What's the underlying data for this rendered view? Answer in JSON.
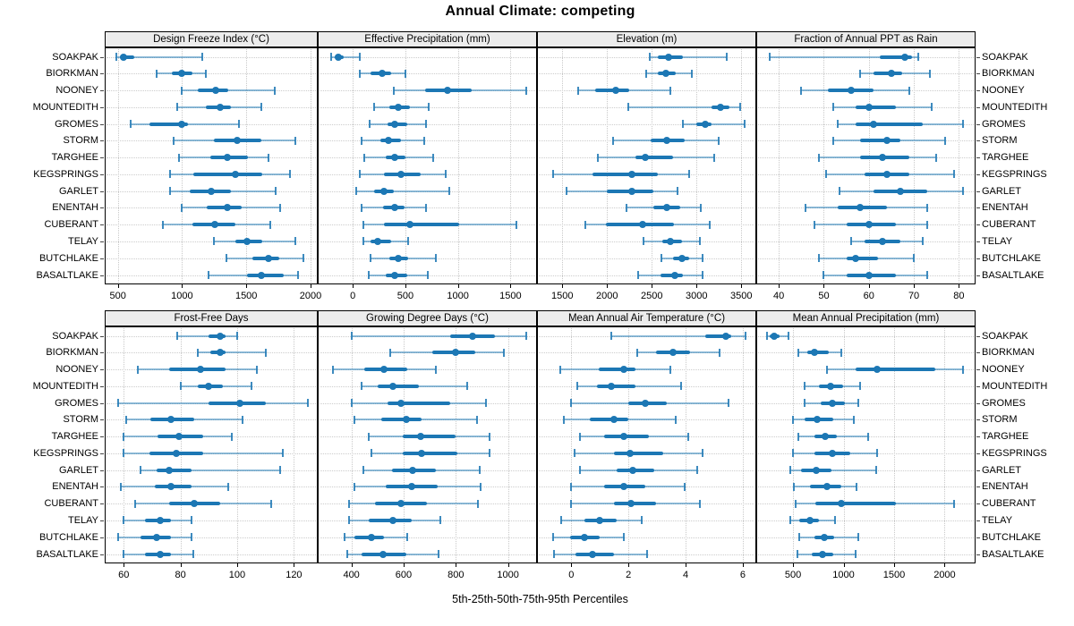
{
  "title": "Annual Climate: competing",
  "caption": "5th-25th-50th-75th-95th Percentiles",
  "colors": {
    "point": "#1c77b4",
    "range_line": "rgba(28,119,180,0.5)",
    "cap": "rgba(28,119,180,0.85)",
    "grid": "#c9c9c9",
    "strip_bg": "#ececec",
    "border": "#000000"
  },
  "chart_data": {
    "type": "trellis-dotplot-percentiles",
    "title": "Annual Climate: competing",
    "caption": "5th-25th-50th-75th-95th Percentiles",
    "percentiles": [
      5,
      25,
      50,
      75,
      95
    ],
    "legend_position": "none",
    "grid": "dotted",
    "stations": [
      "SOAKPAK",
      "BIORKMAN",
      "NOONEY",
      "MOUNTEDITH",
      "GROMES",
      "STORM",
      "TARGHEE",
      "KEGSPRINGS",
      "GARLET",
      "ENENTAH",
      "CUBERANT",
      "TELAY",
      "BUTCHLAKE",
      "BASALTLAKE"
    ],
    "panels": [
      {
        "title": "Design Freeze Index (°C)",
        "grid_row": 0,
        "grid_col": 0,
        "xlim": [
          398,
          2056
        ],
        "ticks": [
          500,
          1000,
          1500,
          2000
        ],
        "tick_labels": [
          "500",
          "1000",
          "1500",
          "2000"
        ],
        "values": [
          [
            490,
            515,
            545,
            625,
            1155
          ],
          [
            800,
            920,
            1000,
            1080,
            1185
          ],
          [
            1000,
            1125,
            1265,
            1360,
            1720
          ],
          [
            965,
            1185,
            1300,
            1380,
            1620
          ],
          [
            600,
            745,
            1000,
            1045,
            1440
          ],
          [
            935,
            1245,
            1430,
            1615,
            1880
          ],
          [
            975,
            1220,
            1355,
            1510,
            1675
          ],
          [
            905,
            1090,
            1415,
            1625,
            1840
          ],
          [
            905,
            1060,
            1225,
            1380,
            1730
          ],
          [
            1000,
            1195,
            1350,
            1465,
            1765
          ],
          [
            850,
            1080,
            1255,
            1415,
            1690
          ],
          [
            1250,
            1415,
            1505,
            1625,
            1885
          ],
          [
            1345,
            1545,
            1675,
            1755,
            1945
          ],
          [
            1205,
            1505,
            1620,
            1790,
            1905
          ]
        ]
      },
      {
        "title": "Effective Precipitation (mm)",
        "grid_row": 0,
        "grid_col": 1,
        "xlim": [
          -334,
          1752
        ],
        "ticks": [
          0,
          500,
          1000,
          1500
        ],
        "tick_labels": [
          "0",
          "500",
          "1000",
          "1500"
        ],
        "values": [
          [
            -210,
            -170,
            -135,
            -90,
            70
          ],
          [
            70,
            170,
            280,
            360,
            500
          ],
          [
            390,
            690,
            900,
            1130,
            1650
          ],
          [
            200,
            345,
            430,
            545,
            725
          ],
          [
            160,
            330,
            400,
            515,
            700
          ],
          [
            80,
            260,
            340,
            460,
            680
          ],
          [
            110,
            315,
            395,
            500,
            765
          ],
          [
            65,
            300,
            460,
            645,
            880
          ],
          [
            30,
            200,
            295,
            390,
            915
          ],
          [
            80,
            285,
            395,
            490,
            700
          ],
          [
            100,
            295,
            540,
            1015,
            1560
          ],
          [
            100,
            170,
            240,
            360,
            530
          ],
          [
            170,
            345,
            435,
            530,
            790
          ],
          [
            150,
            315,
            400,
            515,
            710
          ]
        ]
      },
      {
        "title": "Elevation (m)",
        "grid_row": 0,
        "grid_col": 2,
        "xlim": [
          1217,
          3667
        ],
        "ticks": [
          1500,
          2000,
          2500,
          3000,
          3500
        ],
        "tick_labels": [
          "1500",
          "2000",
          "2500",
          "3000",
          "3500"
        ],
        "values": [
          [
            2480,
            2570,
            2690,
            2850,
            3340
          ],
          [
            2435,
            2565,
            2655,
            2765,
            2950
          ],
          [
            1680,
            1865,
            2100,
            2250,
            2710
          ],
          [
            2235,
            3165,
            3265,
            3365,
            3485
          ],
          [
            2845,
            3000,
            3100,
            3165,
            3535
          ],
          [
            2065,
            2485,
            2665,
            2865,
            3245
          ],
          [
            1895,
            2315,
            2425,
            2735,
            3200
          ],
          [
            1400,
            1835,
            2275,
            2565,
            2915
          ],
          [
            1545,
            2000,
            2275,
            2515,
            2790
          ],
          [
            2215,
            2515,
            2665,
            2815,
            3045
          ],
          [
            1760,
            1985,
            2400,
            2750,
            3145
          ],
          [
            2410,
            2615,
            2710,
            2835,
            3035
          ],
          [
            2610,
            2735,
            2835,
            2915,
            3065
          ],
          [
            2350,
            2600,
            2755,
            2850,
            3065
          ]
        ]
      },
      {
        "title": "Fraction of Annual PPT as Rain",
        "grid_row": 0,
        "grid_col": 3,
        "xlim": [
          35,
          83.7
        ],
        "ticks": [
          40,
          50,
          60,
          70,
          80
        ],
        "tick_labels": [
          "40",
          "50",
          "60",
          "70",
          "80"
        ],
        "values": [
          [
            38,
            62.5,
            68,
            69.5,
            71
          ],
          [
            58,
            61,
            65,
            67.5,
            73.5
          ],
          [
            45,
            51,
            56,
            61,
            69
          ],
          [
            52,
            57,
            60,
            66,
            74
          ],
          [
            53,
            57,
            61,
            72,
            81
          ],
          [
            52,
            58,
            64,
            67,
            77
          ],
          [
            49,
            58,
            63,
            69,
            75
          ],
          [
            50.5,
            59,
            64,
            69,
            79
          ],
          [
            53.5,
            61,
            67,
            73,
            81
          ],
          [
            46,
            53,
            58,
            64,
            73
          ],
          [
            48,
            55,
            60,
            66,
            73
          ],
          [
            56,
            59,
            63,
            67,
            72
          ],
          [
            49,
            55,
            57,
            62,
            70
          ],
          [
            50,
            55,
            60,
            66,
            73
          ]
        ]
      },
      {
        "title": "Frost-Free Days",
        "grid_row": 1,
        "grid_col": 0,
        "xlim": [
          53.3,
          128.4
        ],
        "ticks": [
          60,
          80,
          100,
          120
        ],
        "tick_labels": [
          "60",
          "80",
          "100",
          "120"
        ],
        "values": [
          [
            79,
            90,
            94,
            96,
            100
          ],
          [
            86,
            90.5,
            94,
            96,
            110
          ],
          [
            65,
            76,
            87,
            96,
            107
          ],
          [
            80,
            86,
            90,
            95,
            105
          ],
          [
            58,
            90,
            101,
            110,
            125
          ],
          [
            61,
            69.5,
            76.5,
            85,
            102
          ],
          [
            60,
            72,
            79.5,
            88,
            98
          ],
          [
            60,
            69,
            78.5,
            88,
            116
          ],
          [
            66,
            71.5,
            76,
            84,
            115
          ],
          [
            59,
            71,
            76.5,
            84,
            97
          ],
          [
            64,
            76,
            85,
            94,
            112
          ],
          [
            60,
            67.5,
            73,
            76.5,
            84
          ],
          [
            58,
            66,
            71.5,
            76.5,
            84
          ],
          [
            60,
            67.5,
            73,
            76.5,
            84.5
          ]
        ]
      },
      {
        "title": "Growing Degree Days (°C)",
        "grid_row": 1,
        "grid_col": 1,
        "xlim": [
          271,
          1111
        ],
        "ticks": [
          400,
          600,
          800,
          1000
        ],
        "tick_labels": [
          "400",
          "600",
          "800",
          "1000"
        ],
        "values": [
          [
            400,
            780,
            865,
            950,
            1070
          ],
          [
            550,
            710,
            800,
            875,
            985
          ],
          [
            330,
            450,
            525,
            615,
            725
          ],
          [
            440,
            500,
            560,
            660,
            845
          ],
          [
            400,
            540,
            590,
            780,
            915
          ],
          [
            410,
            515,
            610,
            670,
            880
          ],
          [
            465,
            595,
            665,
            800,
            930
          ],
          [
            475,
            595,
            670,
            805,
            930
          ],
          [
            445,
            555,
            635,
            725,
            890
          ],
          [
            410,
            530,
            630,
            730,
            895
          ],
          [
            390,
            490,
            590,
            690,
            885
          ],
          [
            390,
            465,
            560,
            630,
            740
          ],
          [
            375,
            410,
            475,
            525,
            615
          ],
          [
            385,
            440,
            520,
            610,
            735
          ]
        ]
      },
      {
        "title": "Mean Annual Air Temperature (°C)",
        "grid_row": 1,
        "grid_col": 2,
        "xlim": [
          -1.2,
          6.47
        ],
        "ticks": [
          0,
          2,
          4,
          6
        ],
        "tick_labels": [
          "0",
          "2",
          "4",
          "6"
        ],
        "values": [
          [
            1.4,
            4.7,
            5.4,
            5.6,
            6.1
          ],
          [
            2.3,
            2.95,
            3.55,
            4.15,
            5.2
          ],
          [
            -0.4,
            0.95,
            1.85,
            2.25,
            3.45
          ],
          [
            0.2,
            0.9,
            1.4,
            2.25,
            3.85
          ],
          [
            0,
            2,
            2.6,
            3.35,
            5.5
          ],
          [
            -0.25,
            0.65,
            1.5,
            2,
            3.65
          ],
          [
            0.3,
            1.15,
            1.85,
            2.7,
            4.1
          ],
          [
            0.1,
            1.5,
            2.05,
            3.2,
            4.6
          ],
          [
            0.3,
            1.6,
            2.15,
            2.9,
            4.4
          ],
          [
            0,
            1.15,
            1.85,
            2.6,
            3.95
          ],
          [
            0,
            1.5,
            2.1,
            2.95,
            4.5
          ],
          [
            -0.35,
            0.45,
            1,
            1.6,
            2.45
          ],
          [
            -0.65,
            -0.05,
            0.45,
            1,
            1.85
          ],
          [
            -0.6,
            0.15,
            0.75,
            1.5,
            2.65
          ]
        ]
      },
      {
        "title": "Mean Annual Precipitation (mm)",
        "grid_row": 1,
        "grid_col": 3,
        "xlim": [
          136,
          2306
        ],
        "ticks": [
          500,
          1000,
          1500,
          2000
        ],
        "tick_labels": [
          "500",
          "1000",
          "1500",
          "2000"
        ],
        "values": [
          [
            245,
            270,
            310,
            370,
            455
          ],
          [
            550,
            640,
            715,
            850,
            980
          ],
          [
            835,
            1115,
            1335,
            1905,
            2180
          ],
          [
            615,
            760,
            870,
            995,
            1160
          ],
          [
            610,
            775,
            885,
            1010,
            1150
          ],
          [
            500,
            610,
            735,
            900,
            1105
          ],
          [
            550,
            715,
            820,
            935,
            1245
          ],
          [
            500,
            715,
            885,
            1070,
            1335
          ],
          [
            475,
            580,
            725,
            880,
            1325
          ],
          [
            510,
            670,
            835,
            980,
            1130
          ],
          [
            525,
            720,
            980,
            1520,
            2090
          ],
          [
            475,
            565,
            670,
            760,
            915
          ],
          [
            560,
            715,
            810,
            905,
            1145
          ],
          [
            545,
            685,
            790,
            895,
            1120
          ]
        ]
      }
    ]
  }
}
